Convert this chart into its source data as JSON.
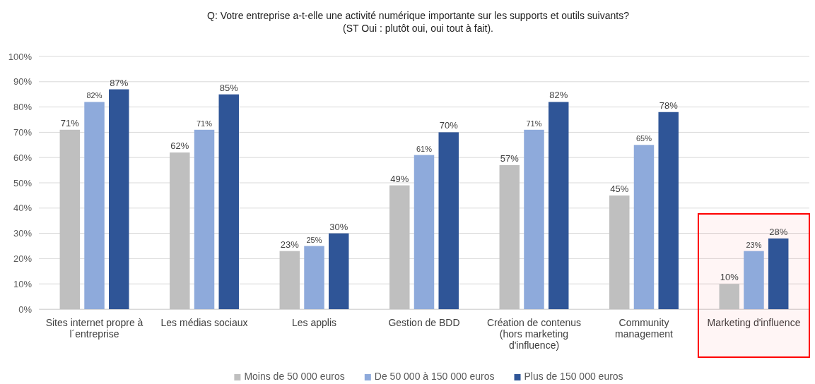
{
  "chart_data": {
    "type": "bar",
    "title": "Q: Votre entreprise a-t-elle une activité numérique importante sur les supports et outils suivants?",
    "subtitle": "(ST Oui : plutôt oui, oui tout à fait).",
    "categories": [
      "Sites internet propre à l´entreprise",
      "Les médias sociaux",
      "Les applis",
      "Gestion de BDD",
      "Création de contenus (hors marketing d'influence)",
      "Community management",
      "Marketing d'influence"
    ],
    "series": [
      {
        "name": "Moins de 50 000 euros",
        "color": "#bfbfbf",
        "values": [
          71,
          62,
          23,
          49,
          57,
          45,
          10
        ],
        "value_labels": [
          "71%",
          "62%",
          "23%",
          "49%",
          "57%",
          "45%",
          "10%"
        ]
      },
      {
        "name": "De 50 000 à 150 000 euros",
        "color": "#8eaadb",
        "values": [
          82,
          71,
          25,
          61,
          71,
          65,
          23
        ],
        "value_labels": [
          "82%",
          "71%",
          "25%",
          "61%",
          "71%",
          "65%",
          "23%"
        ]
      },
      {
        "name": "Plus de 150 000 euros",
        "color": "#2f5597",
        "values": [
          87,
          85,
          30,
          70,
          82,
          78,
          28
        ],
        "value_labels": [
          "87%",
          "85%",
          "30%",
          "70%",
          "82%",
          "78%",
          "28%"
        ]
      }
    ],
    "ylim": [
      0,
      100
    ],
    "yticks": [
      {
        "value": 0,
        "label": "0%"
      },
      {
        "value": 10,
        "label": "10%"
      },
      {
        "value": 20,
        "label": "20%"
      },
      {
        "value": 30,
        "label": "30%"
      },
      {
        "value": 40,
        "label": "40%"
      },
      {
        "value": 50,
        "label": "50%"
      },
      {
        "value": 60,
        "label": "60%"
      },
      {
        "value": 70,
        "label": "70%"
      },
      {
        "value": 80,
        "label": "80%"
      },
      {
        "value": 90,
        "label": "90%"
      },
      {
        "value": 100,
        "label": "100%"
      }
    ],
    "grid": "y",
    "legend": "bottom",
    "bands": [
      {
        "axis": "x",
        "from": "Marketing d'influence",
        "to": "Marketing d'influence",
        "color": "#ff0000"
      }
    ]
  }
}
